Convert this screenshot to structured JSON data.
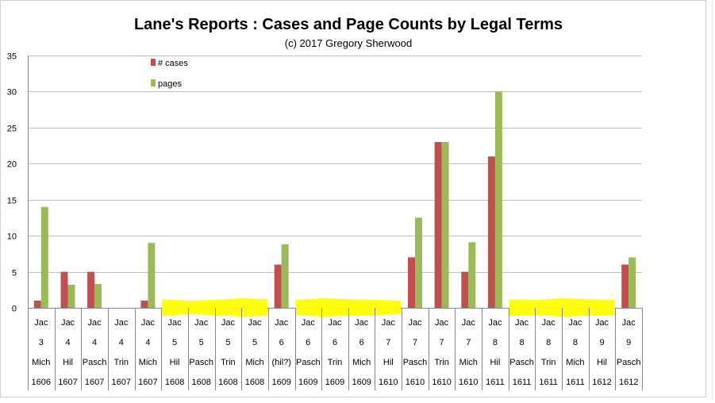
{
  "chart_data": {
    "type": "bar",
    "title": "Lane's Reports : Cases and Page Counts by Legal Terms",
    "subtitle": "(c) 2017 Gregory Sherwood",
    "xlabel": "",
    "ylabel": "",
    "ylim": [
      0,
      35
    ],
    "yticks": [
      0,
      5,
      10,
      15,
      20,
      25,
      30,
      35
    ],
    "grid": true,
    "legend_position": "top-left",
    "categories": [
      [
        "Jac",
        "3",
        "Mich",
        "1606"
      ],
      [
        "Jac",
        "4",
        "Hil",
        "1607"
      ],
      [
        "Jac",
        "4",
        "Pasch",
        "1607"
      ],
      [
        "Jac",
        "4",
        "Trin",
        "1607"
      ],
      [
        "Jac",
        "4",
        "Mich",
        "1607"
      ],
      [
        "Jac",
        "5",
        "Hil",
        "1608"
      ],
      [
        "Jac",
        "5",
        "Pasch",
        "1608"
      ],
      [
        "Jac",
        "5",
        "Trin",
        "1608"
      ],
      [
        "Jac",
        "5",
        "Mich",
        "1608"
      ],
      [
        "Jac",
        "6",
        "(hil?)",
        "1609"
      ],
      [
        "Jac",
        "6",
        "Pasch",
        "1609"
      ],
      [
        "Jac",
        "6",
        "Trin",
        "1609"
      ],
      [
        "Jac",
        "6",
        "Mich",
        "1609"
      ],
      [
        "Jac",
        "7",
        "Hil",
        "1610"
      ],
      [
        "Jac",
        "7",
        "Pasch",
        "1610"
      ],
      [
        "Jac",
        "7",
        "Trin",
        "1610"
      ],
      [
        "Jac",
        "7",
        "Mich",
        "1610"
      ],
      [
        "Jac",
        "8",
        "Hil",
        "1611"
      ],
      [
        "Jac",
        "8",
        "Pasch",
        "1611"
      ],
      [
        "Jac",
        "8",
        "Trin",
        "1611"
      ],
      [
        "Jac",
        "8",
        "Mich",
        "1611"
      ],
      [
        "Jac",
        "9",
        "Hil",
        "1612"
      ],
      [
        "Jac",
        "9",
        "Pasch",
        "1612"
      ]
    ],
    "series": [
      {
        "name": "# cases",
        "color": "#c0504d",
        "values": [
          1,
          5,
          5,
          0,
          1,
          0,
          0,
          0,
          0,
          6,
          0,
          0,
          0,
          0,
          7,
          23,
          5,
          21,
          0,
          0,
          0,
          0,
          6
        ]
      },
      {
        "name": "pages",
        "color": "#9bbb59",
        "values": [
          14,
          3.2,
          3.3,
          0,
          9,
          0,
          0,
          0,
          0,
          8.8,
          0,
          0,
          0,
          0,
          12.5,
          23,
          9.1,
          30,
          0,
          0,
          0,
          0,
          7
        ]
      }
    ],
    "highlight_color": "#ffff00",
    "highlighted_category_ranges": [
      [
        5,
        8
      ],
      [
        10,
        13
      ],
      [
        18,
        21
      ]
    ]
  }
}
